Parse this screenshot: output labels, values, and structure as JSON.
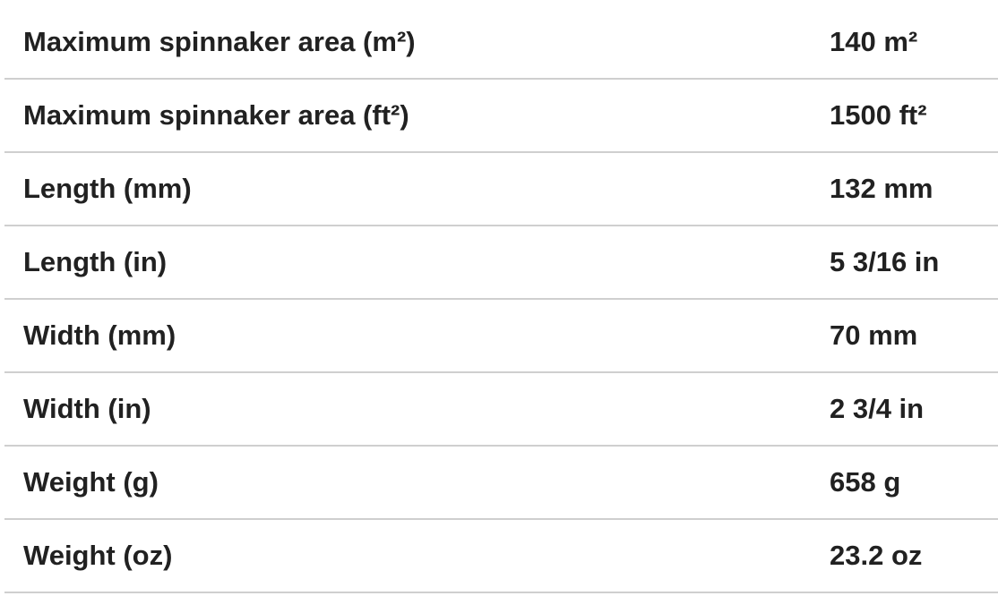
{
  "spec_table": {
    "rows": [
      {
        "label": "Maximum spinnaker area (m²)",
        "value": "140 m²"
      },
      {
        "label": "Maximum spinnaker area (ft²)",
        "value": "1500 ft²"
      },
      {
        "label": "Length (mm)",
        "value": "132 mm"
      },
      {
        "label": "Length (in)",
        "value": "5 3/16 in"
      },
      {
        "label": "Width (mm)",
        "value": "70 mm"
      },
      {
        "label": "Width (in)",
        "value": "2 3/4 in"
      },
      {
        "label": "Weight (g)",
        "value": "658 g"
      },
      {
        "label": "Weight (oz)",
        "value": "23.2 oz"
      }
    ],
    "colors": {
      "text": "#212121",
      "divider": "#cfcfcf",
      "background": "#ffffff"
    }
  }
}
